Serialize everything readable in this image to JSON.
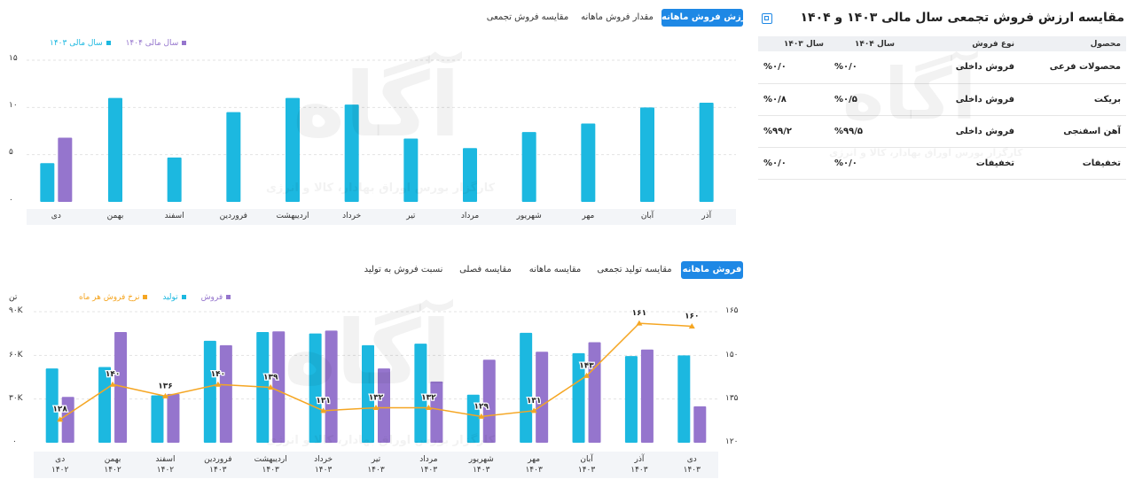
{
  "top_tabs": [
    "ارزش فروش ماهانه",
    "مقدار فروش ماهانه",
    "مقایسه فروش تجمعی"
  ],
  "top_tabs_active": 0,
  "bottom_tabs": [
    "فروش ماهانه",
    "مقایسه تولید تجمعی",
    "مقایسه ماهانه",
    "مقایسه فصلی",
    "نسبت فروش به تولید"
  ],
  "bottom_tabs_active": 0,
  "colors": {
    "accent": "#1e88e5",
    "cyan": "#1cb8e0",
    "purple": "#9575cd",
    "orange": "#f5a623"
  },
  "comparison": {
    "title": "مقایسه ارزش فروش تجمعی سال مالی ۱۴۰۳ و ۱۴۰۴",
    "columns": [
      "محصول",
      "نوع فروش",
      "سال ۱۴۰۴",
      "سال ۱۴۰۳"
    ],
    "rows": [
      {
        "product": "محصولات فرعی",
        "type": "فروش داخلی",
        "y1404": "%۰/۰",
        "y1403": "%۰/۰"
      },
      {
        "product": "بریکت",
        "type": "فروش داخلی",
        "y1404": "%۰/۵",
        "y1403": "%۰/۸"
      },
      {
        "product": "آهن اسفنجی",
        "type": "فروش داخلی",
        "y1404": "%۹۹/۵",
        "y1403": "%۹۹/۲"
      },
      {
        "product": "تخفیفات",
        "type": "تخفیفات",
        "y1404": "%۰/۰",
        "y1403": "%۰/۰"
      }
    ]
  },
  "watermark": {
    "logo": "آگاه",
    "text": "کارگزار بورس اوراق بهادار، کالا و انرژی"
  },
  "chart_data": [
    {
      "type": "bar",
      "categories": [
        "آذر",
        "آبان",
        "مهر",
        "شهریور",
        "مرداد",
        "تیر",
        "خرداد",
        "اردیبهشت",
        "فروردین",
        "اسفند",
        "بهمن",
        "دی"
      ],
      "series": [
        {
          "name": "سال مالی ۱۴۰۳",
          "color": "#1cb8e0",
          "values": [
            10.5,
            10,
            8.3,
            7.4,
            5.7,
            6.7,
            10.3,
            11,
            9.5,
            4.7,
            11,
            4.1
          ]
        },
        {
          "name": "سال مالی ۱۴۰۴",
          "color": "#9575cd",
          "values": [
            null,
            null,
            null,
            null,
            null,
            null,
            null,
            null,
            null,
            null,
            null,
            6.8
          ]
        }
      ],
      "yticks": [
        "۱۵",
        "۱۰",
        "۵",
        "۰"
      ],
      "ylim": [
        0,
        15
      ],
      "legend_position": "top-left"
    },
    {
      "type": "bar",
      "categories": [
        {
          "month": "دی",
          "year": "۱۴۰۳"
        },
        {
          "month": "آذر",
          "year": "۱۴۰۳"
        },
        {
          "month": "آبان",
          "year": "۱۴۰۳"
        },
        {
          "month": "مهر",
          "year": "۱۴۰۳"
        },
        {
          "month": "شهریور",
          "year": "۱۴۰۳"
        },
        {
          "month": "مرداد",
          "year": "۱۴۰۳"
        },
        {
          "month": "تیر",
          "year": "۱۴۰۳"
        },
        {
          "month": "خرداد",
          "year": "۱۴۰۳"
        },
        {
          "month": "اردیبهشت",
          "year": "۱۴۰۳"
        },
        {
          "month": "فروردین",
          "year": "۱۴۰۳"
        },
        {
          "month": "اسفند",
          "year": "۱۴۰۲"
        },
        {
          "month": "بهمن",
          "year": "۱۴۰۲"
        },
        {
          "month": "دی",
          "year": "۱۴۰۲"
        }
      ],
      "series": [
        {
          "name": "تولید",
          "color": "#1cb8e0",
          "values": [
            60000,
            59500,
            61500,
            75500,
            33000,
            68000,
            67000,
            75000,
            76000,
            70000,
            32500,
            52000,
            51000
          ]
        },
        {
          "name": "فروش",
          "color": "#9575cd",
          "values": [
            25000,
            64000,
            69000,
            62500,
            57000,
            42000,
            51000,
            77000,
            76500,
            67000,
            33500,
            76000,
            31500
          ]
        },
        {
          "name": "نرخ فروش هر ماه",
          "color": "#f5a623",
          "type": "line",
          "axis": "right",
          "values": [
            160,
            161,
            143,
            131,
            129,
            132,
            132,
            131,
            139,
            140,
            136,
            140,
            128
          ],
          "labels": [
            "۱۶۰",
            "۱۶۱",
            "۱۴۳",
            "۱۳۱",
            "۱۲۹",
            "۱۳۲",
            "۱۳۲",
            "۱۳۱",
            "۱۳۹",
            "۱۴۰",
            "۱۳۶",
            "۱۴۰",
            "۱۲۸"
          ]
        }
      ],
      "ylabel_left": "تن",
      "yticks_left": [
        "۹۰K",
        "۶۰K",
        "۳۰K",
        "۰"
      ],
      "ylim_left": [
        0,
        90000
      ],
      "yticks_right": [
        "۱۶۵",
        "۱۵۰",
        "۱۳۵",
        "۱۲۰"
      ],
      "ylim_right": [
        120,
        165
      ],
      "legend_position": "top-right"
    }
  ]
}
